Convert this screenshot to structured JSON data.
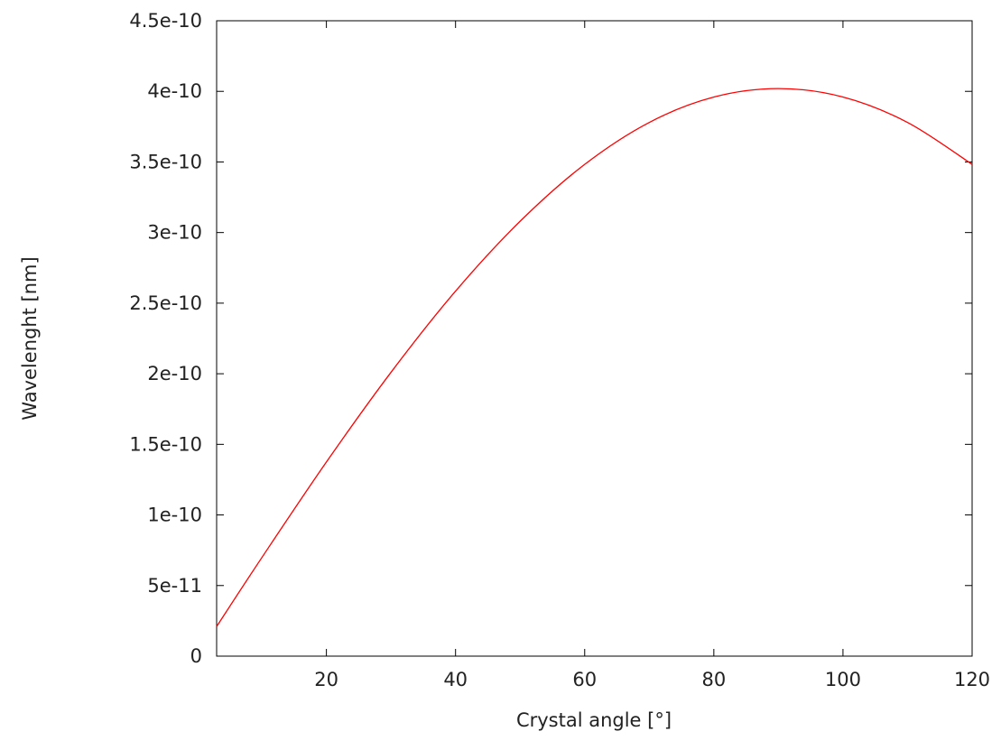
{
  "chart_data": {
    "type": "line",
    "xlabel": "Crystal angle [°]",
    "ylabel": "Wavelenght [nm]",
    "xlim": [
      3,
      120
    ],
    "ylim": [
      0,
      4.5e-10
    ],
    "grid": false,
    "legend": "none",
    "x_ticks": [
      20,
      40,
      60,
      80,
      100,
      120
    ],
    "x_tick_labels": [
      "20",
      "40",
      "60",
      "80",
      "100",
      "120"
    ],
    "y_ticks": [
      0,
      5e-11,
      1e-10,
      1.5e-10,
      2e-10,
      2.5e-10,
      3e-10,
      3.5e-10,
      4e-10,
      4.5e-10
    ],
    "y_tick_labels": [
      "0",
      "5e-11",
      "1e-10",
      "1.5e-10",
      "2e-10",
      "2.5e-10",
      "3e-10",
      "3.5e-10",
      "4e-10",
      "4.5e-10"
    ],
    "series": [
      {
        "color": "#ff0000",
        "x": [
          3,
          10,
          20,
          30,
          40,
          50,
          60,
          70,
          80,
          90,
          100,
          110,
          120
        ],
        "y": [
          2.1e-11,
          6.98e-11,
          1.375e-10,
          2.01e-10,
          2.585e-10,
          3.08e-10,
          3.483e-10,
          3.78e-10,
          3.96e-10,
          4.02e-10,
          3.96e-10,
          3.78e-10,
          3.483e-10
        ]
      }
    ]
  }
}
